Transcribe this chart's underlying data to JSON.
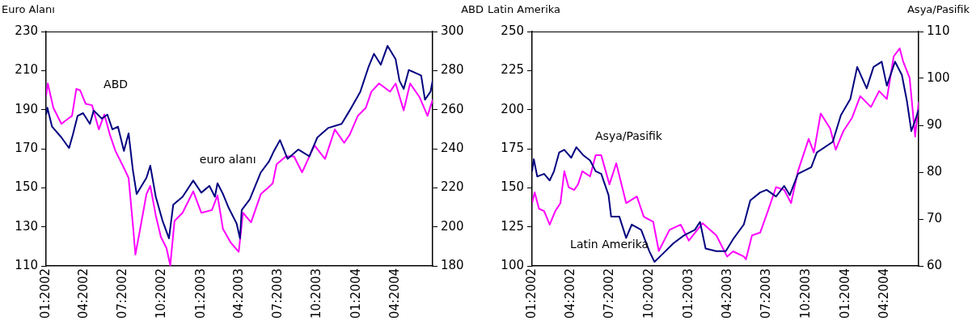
{
  "chart_data": [
    {
      "type": "line",
      "ylabel": "Euro Alanı",
      "y2label": "ABD",
      "marker": "none",
      "xlim": [
        "2002-01-01",
        "2004-06-28"
      ],
      "xticks": [
        {
          "value": "2002-01-01",
          "label": "01:2002"
        },
        {
          "value": "2002-04-01",
          "label": "04:2002"
        },
        {
          "value": "2002-07-01",
          "label": "07:2002"
        },
        {
          "value": "2002-10-01",
          "label": "10:2002"
        },
        {
          "value": "2003-01-01",
          "label": "01:2003"
        },
        {
          "value": "2003-04-01",
          "label": "04:2003"
        },
        {
          "value": "2003-07-01",
          "label": "07:2003"
        },
        {
          "value": "2003-10-01",
          "label": "10:2003"
        },
        {
          "value": "2004-01-01",
          "label": "01:2004"
        },
        {
          "value": "2004-04-01",
          "label": "04:2004"
        }
      ],
      "ylim": [
        110,
        230
      ],
      "yticks": [
        110,
        130,
        150,
        170,
        190,
        210,
        230
      ],
      "y2lim": [
        180,
        300
      ],
      "y2ticks": [
        180,
        200,
        220,
        240,
        260,
        280,
        300
      ],
      "series": [
        {
          "name": "euro alanı",
          "color": "#000080",
          "axis": "y",
          "x": [
            "2002-01-01",
            "2002-01-04",
            "2002-01-15",
            "2002-02-06",
            "2002-02-24",
            "2002-03-05",
            "2002-03-16",
            "2002-03-29",
            "2002-04-14",
            "2002-04-23",
            "2002-05-12",
            "2002-05-25",
            "2002-06-06",
            "2002-06-19",
            "2002-07-03",
            "2002-07-14",
            "2002-07-24",
            "2002-08-02",
            "2002-08-25",
            "2002-09-03",
            "2002-09-16",
            "2002-10-02",
            "2002-10-17",
            "2002-10-27",
            "2002-11-18",
            "2002-12-13",
            "2003-01-01",
            "2003-01-20",
            "2003-02-02",
            "2003-02-08",
            "2003-02-21",
            "2003-03-06",
            "2003-03-25",
            "2003-04-02",
            "2003-04-06",
            "2003-04-25",
            "2003-05-21",
            "2003-06-09",
            "2003-06-21",
            "2003-07-05",
            "2003-07-23",
            "2003-08-17",
            "2003-09-12",
            "2003-10-01",
            "2003-10-26",
            "2003-11-27",
            "2003-12-16",
            "2004-01-10",
            "2004-01-29",
            "2004-02-11",
            "2004-02-27",
            "2004-03-14",
            "2004-04-02",
            "2004-04-11",
            "2004-04-21",
            "2004-05-03",
            "2004-06-01",
            "2004-06-10",
            "2004-06-23",
            "2004-06-28"
          ],
          "values": [
            187.5,
            191,
            181.3,
            175.8,
            170.3,
            177.2,
            186.8,
            188.2,
            182.7,
            189.6,
            185.4,
            187.5,
            179.9,
            181.3,
            168.9,
            177.9,
            159.2,
            146.8,
            155.1,
            161.3,
            145.4,
            133,
            124.1,
            141.3,
            145.4,
            153.7,
            147.5,
            151,
            145.4,
            152.3,
            146.8,
            139.9,
            131.7,
            124.1,
            138.6,
            144.1,
            157.9,
            163.4,
            168.9,
            174.4,
            164.8,
            169.6,
            166.1,
            175.8,
            180.6,
            182.7,
            189.6,
            199.2,
            211.7,
            218.6,
            213,
            222.7,
            215.8,
            204.8,
            200.6,
            210.3,
            207.5,
            195.1,
            199.2,
            204.8
          ]
        },
        {
          "name": "ABD",
          "color": "#ff00ff",
          "axis": "y2",
          "x": [
            "2002-01-01",
            "2002-01-05",
            "2002-01-18",
            "2002-02-06",
            "2002-02-22",
            "2002-03-03",
            "2002-03-13",
            "2002-03-22",
            "2002-04-04",
            "2002-04-19",
            "2002-05-05",
            "2002-05-18",
            "2002-05-31",
            "2002-06-13",
            "2002-07-02",
            "2002-07-14",
            "2002-07-25",
            "2002-07-30",
            "2002-08-09",
            "2002-08-25",
            "2002-09-03",
            "2002-09-16",
            "2002-09-28",
            "2002-10-11",
            "2002-10-20",
            "2002-10-30",
            "2002-11-18",
            "2002-12-13",
            "2003-01-01",
            "2003-01-26",
            "2003-02-08",
            "2003-02-21",
            "2003-03-11",
            "2003-03-30",
            "2003-04-09",
            "2003-04-28",
            "2003-05-21",
            "2003-06-05",
            "2003-06-18",
            "2003-06-27",
            "2003-07-19",
            "2003-08-07",
            "2003-08-26",
            "2003-09-24",
            "2003-10-19",
            "2003-11-11",
            "2003-12-03",
            "2003-12-16",
            "2004-01-04",
            "2004-01-23",
            "2004-02-05",
            "2004-02-23",
            "2004-03-20",
            "2004-04-02",
            "2004-04-21",
            "2004-05-06",
            "2004-05-28",
            "2004-06-16",
            "2004-06-28"
          ],
          "values": [
            267.2,
            273.4,
            261,
            252.7,
            255.4,
            256.8,
            270.6,
            269.9,
            263,
            262.3,
            249.9,
            257.5,
            247.2,
            238.9,
            230.6,
            225.1,
            198.9,
            185.8,
            197.5,
            216.8,
            221,
            205.8,
            194.8,
            189.2,
            180.3,
            203,
            207.2,
            218.2,
            207.2,
            208.6,
            216.1,
            198.9,
            192,
            187.2,
            207.2,
            202.3,
            216.8,
            219.6,
            222.3,
            232,
            236.1,
            236.1,
            227.9,
            241.7,
            234.8,
            249.9,
            243,
            247.2,
            256.8,
            261,
            269.2,
            273.4,
            269.2,
            273.4,
            259.6,
            273.4,
            266.5,
            256.8,
            265.1
          ]
        }
      ]
    },
    {
      "type": "line",
      "ylabel": "Latin Amerika",
      "y2label": "Asya/Pasifik",
      "marker": "none",
      "xlim": [
        "2002-01-01",
        "2004-06-19"
      ],
      "xticks": [
        {
          "value": "2002-01-01",
          "label": "01:2002"
        },
        {
          "value": "2002-04-01",
          "label": "04:2002"
        },
        {
          "value": "2002-07-01",
          "label": "07:2002"
        },
        {
          "value": "2002-10-01",
          "label": "10:2002"
        },
        {
          "value": "2003-01-01",
          "label": "01:2003"
        },
        {
          "value": "2003-04-01",
          "label": "04:2003"
        },
        {
          "value": "2003-07-01",
          "label": "07:2003"
        },
        {
          "value": "2003-10-01",
          "label": "10:2003"
        },
        {
          "value": "2004-01-01",
          "label": "01:2004"
        },
        {
          "value": "2004-04-01",
          "label": "04:2004"
        }
      ],
      "ylim": [
        100,
        250
      ],
      "yticks": [
        100,
        125,
        150,
        175,
        200,
        225,
        250
      ],
      "y2lim": [
        60,
        110
      ],
      "y2ticks": [
        60,
        70,
        80,
        90,
        100,
        110
      ],
      "series": [
        {
          "name": "Latin Amerika",
          "color": "#000080",
          "axis": "y",
          "x": [
            "2002-01-01",
            "2002-01-05",
            "2002-01-13",
            "2002-01-29",
            "2002-02-11",
            "2002-02-21",
            "2002-03-05",
            "2002-03-17",
            "2002-04-02",
            "2002-04-14",
            "2002-04-30",
            "2002-05-16",
            "2002-05-29",
            "2002-06-11",
            "2002-06-28",
            "2002-07-04",
            "2002-07-23",
            "2002-08-08",
            "2002-08-21",
            "2002-09-12",
            "2002-10-01",
            "2002-10-13",
            "2002-11-01",
            "2002-11-26",
            "2002-12-21",
            "2003-01-15",
            "2003-01-27",
            "2003-02-09",
            "2003-03-06",
            "2003-03-28",
            "2003-04-14",
            "2003-05-09",
            "2003-05-24",
            "2003-06-16",
            "2003-07-01",
            "2003-07-23",
            "2003-08-11",
            "2003-08-24",
            "2003-09-12",
            "2003-10-13",
            "2003-10-26",
            "2003-12-02",
            "2003-12-21",
            "2004-01-12",
            "2004-01-28",
            "2004-02-19",
            "2004-03-06",
            "2004-03-25",
            "2004-04-06",
            "2004-04-25",
            "2004-05-11",
            "2004-05-23",
            "2004-06-02",
            "2004-06-11",
            "2004-06-19"
          ],
          "values": [
            160.6,
            168.3,
            157.2,
            158.9,
            154.7,
            160.6,
            172.6,
            174.3,
            169.2,
            176,
            170.9,
            167.5,
            160.6,
            158.9,
            145.3,
            131.6,
            131.6,
            117.9,
            126.5,
            123.1,
            109.4,
            102.6,
            107.7,
            114.5,
            119.6,
            123.1,
            128.2,
            111.1,
            109.4,
            109.4,
            117.1,
            126.5,
            141.9,
            147,
            148.7,
            144.4,
            151.2,
            145.3,
            158.9,
            163.2,
            172.6,
            179.4,
            196.5,
            206.8,
            227.3,
            213.6,
            227.3,
            230.7,
            215.3,
            230.7,
            222.2,
            205.1,
            186.3,
            193.1,
            199.9
          ]
        },
        {
          "name": "Asya/Pasifik",
          "color": "#ff00ff",
          "axis": "y2",
          "x": [
            "2002-01-01",
            "2002-01-07",
            "2002-01-17",
            "2002-01-29",
            "2002-02-11",
            "2002-02-24",
            "2002-03-08",
            "2002-03-14",
            "2002-03-17",
            "2002-03-27",
            "2002-04-09",
            "2002-04-18",
            "2002-04-28",
            "2002-05-16",
            "2002-05-29",
            "2002-06-11",
            "2002-06-30",
            "2002-07-16",
            "2002-08-08",
            "2002-09-02",
            "2002-09-18",
            "2002-10-10",
            "2002-10-23",
            "2002-11-17",
            "2002-12-13",
            "2003-01-01",
            "2003-02-02",
            "2003-03-06",
            "2003-03-31",
            "2003-04-14",
            "2003-05-09",
            "2003-05-14",
            "2003-05-28",
            "2003-06-16",
            "2003-07-04",
            "2003-07-23",
            "2003-08-11",
            "2003-08-27",
            "2003-09-12",
            "2003-10-07",
            "2003-10-19",
            "2003-11-04",
            "2003-11-26",
            "2003-12-09",
            "2003-12-27",
            "2004-01-16",
            "2004-02-04",
            "2004-02-29",
            "2004-03-19",
            "2004-04-06",
            "2004-04-22",
            "2004-05-06",
            "2004-05-14",
            "2004-05-29",
            "2004-06-11",
            "2004-06-19"
          ],
          "values": [
            73.4,
            75.7,
            72.2,
            71.7,
            68.8,
            71.7,
            73.4,
            77.9,
            80.2,
            76.8,
            76.2,
            77.4,
            80.2,
            79.1,
            83.6,
            83.6,
            77.4,
            81.9,
            73.4,
            74.8,
            70.5,
            69.4,
            63.2,
            67.7,
            68.8,
            65.4,
            69.1,
            66.5,
            62,
            63.1,
            62,
            61.4,
            66.5,
            67.1,
            71.7,
            76.8,
            76.2,
            73.4,
            80.2,
            87.1,
            84.2,
            92.5,
            89.3,
            84.8,
            88.8,
            91.6,
            96.2,
            93.9,
            97.3,
            95.6,
            104.7,
            106.4,
            103.6,
            100.1,
            87.6,
            95
          ]
        }
      ]
    }
  ]
}
